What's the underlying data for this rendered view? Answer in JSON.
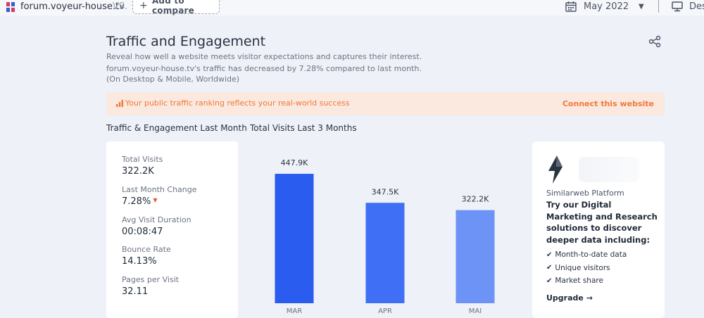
{
  "topbar": {
    "site_name": "forum.voyeur-house.tv",
    "vs_label": "VS.",
    "add_compare_label": "Add to compare",
    "date_label": "May 2022",
    "device_label": "Des"
  },
  "header": {
    "title": "Traffic and Engagement",
    "subtitle_line1": "Reveal how well a website meets visitor expectations and captures their interest.",
    "subtitle_line2": "forum.voyeur-house.tv's traffic has decreased by 7.28% compared to last month.",
    "subtitle_line3": "(On Desktop & Mobile, Worldwide)"
  },
  "banner": {
    "text": "Your public traffic ranking reflects your real-world success",
    "link": "Connect this website",
    "color": "#ef7a3b",
    "background": "#fbe8df"
  },
  "sections": {
    "left_heading": "Traffic & Engagement Last Month",
    "right_heading": "Total Visits Last 3 Months"
  },
  "metrics": [
    {
      "label": "Total Visits",
      "value": "322.2K"
    },
    {
      "label": "Last Month Change",
      "value": "7.28%",
      "trend": "down"
    },
    {
      "label": "Avg Visit Duration",
      "value": "00:08:47"
    },
    {
      "label": "Bounce Rate",
      "value": "14.13%"
    },
    {
      "label": "Pages per Visit",
      "value": "32.11"
    }
  ],
  "chart_data": {
    "type": "bar",
    "title": "Total Visits Last 3 Months",
    "categories": [
      "MAR",
      "APR",
      "MAI"
    ],
    "values": [
      447.9,
      347.5,
      322.2
    ],
    "value_labels": [
      "447.9K",
      "347.5K",
      "322.2K"
    ],
    "unit": "K visits",
    "colors": [
      "#2a5cf0",
      "#3f6ff5",
      "#6e93f6"
    ],
    "ylim": [
      0,
      560
    ],
    "grid": false,
    "legend": "none"
  },
  "promo": {
    "platform": "Similarweb Platform",
    "headline": "Try our Digital Marketing and Research solutions to discover deeper data including:",
    "features": [
      "Month-to-date data",
      "Unique visitors",
      "Market share"
    ],
    "upgrade_label": "Upgrade →"
  },
  "icons": {
    "favicon": "site-favicon-icon",
    "calendar": "calendar-icon",
    "desktop": "desktop-icon",
    "share": "share-icon",
    "banner": "signal-bars-icon",
    "logo": "similarweb-logo-icon",
    "check": "check-icon"
  }
}
